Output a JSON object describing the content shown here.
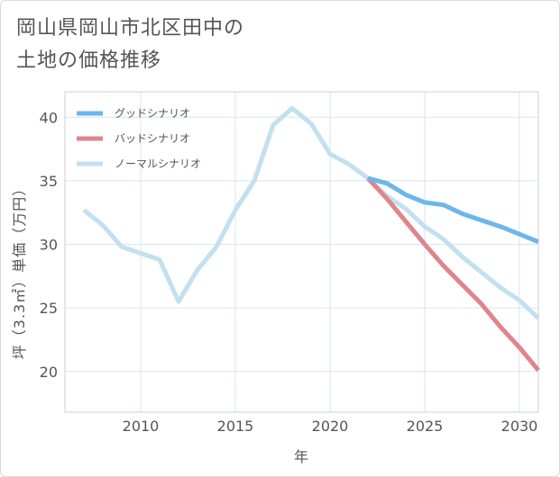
{
  "title_line1": "岡山県岡山市北区田中の",
  "title_line2": "土地の価格推移",
  "chart_data": {
    "type": "line",
    "xlabel": "年",
    "ylabel": "坪（3.3㎡）単価（万円）",
    "xlim": [
      2006.0,
      2031.0
    ],
    "ylim": [
      16.8,
      42.0
    ],
    "x_ticks": [
      2010,
      2015,
      2020,
      2025,
      2030
    ],
    "y_ticks": [
      20,
      25,
      30,
      35,
      40
    ],
    "grid": true,
    "legend_position": "top-left",
    "series": [
      {
        "name": "グッドシナリオ",
        "color": "#6cb6ec",
        "x": [
          2022,
          2023,
          2024,
          2025,
          2026,
          2027,
          2028,
          2029,
          2030,
          2031
        ],
        "y": [
          35.2,
          34.8,
          33.9,
          33.3,
          33.1,
          32.4,
          31.9,
          31.4,
          30.8,
          30.2
        ]
      },
      {
        "name": "バッドシナリオ",
        "color": "#e0848c",
        "x": [
          2022,
          2023,
          2024,
          2025,
          2026,
          2027,
          2028,
          2029,
          2030,
          2031
        ],
        "y": [
          35.2,
          33.6,
          31.8,
          30.0,
          28.3,
          26.8,
          25.3,
          23.5,
          21.9,
          20.1
        ]
      },
      {
        "name": "ノーマルシナリオ",
        "color": "#c2e0ef",
        "x": [
          2007,
          2008,
          2009,
          2010,
          2011,
          2012,
          2013,
          2014,
          2015,
          2016,
          2017,
          2018,
          2019,
          2020,
          2021,
          2022,
          2023,
          2024,
          2025,
          2026,
          2027,
          2028,
          2029,
          2030,
          2031
        ],
        "y": [
          32.7,
          31.5,
          29.8,
          29.3,
          28.8,
          25.5,
          28.0,
          29.8,
          32.7,
          35.0,
          39.4,
          40.7,
          39.5,
          37.1,
          36.3,
          35.2,
          33.8,
          32.8,
          31.4,
          30.4,
          29.0,
          27.8,
          26.6,
          25.6,
          24.2
        ]
      }
    ]
  }
}
